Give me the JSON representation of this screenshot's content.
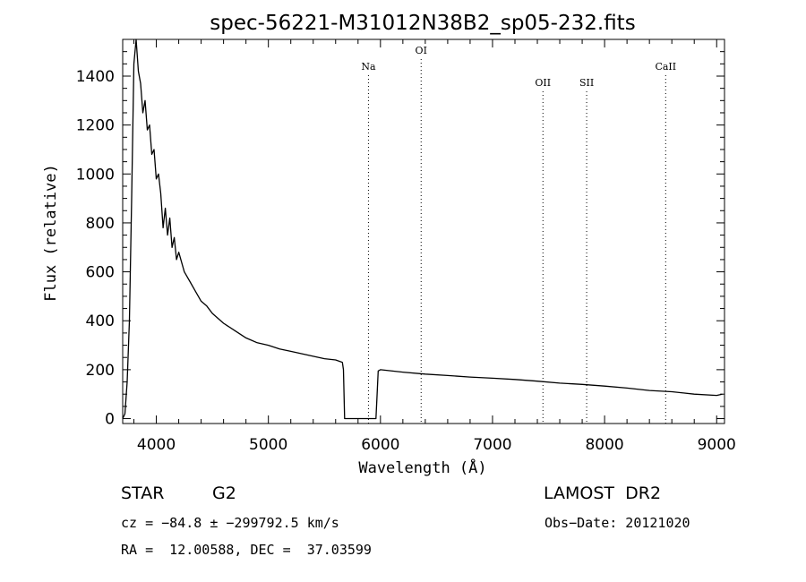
{
  "chart_data": {
    "type": "line",
    "title": "spec-56221-M31012N38B2_sp05-232.fits",
    "xlabel": "Wavelength (Å)",
    "ylabel": "Flux (relative)",
    "xlim": [
      3700,
      9070
    ],
    "ylim": [
      -20,
      1550
    ],
    "xticks": [
      4000,
      5000,
      6000,
      7000,
      8000,
      9000
    ],
    "yticks": [
      0,
      200,
      400,
      600,
      800,
      1000,
      1200,
      1400
    ],
    "xtick_labels": [
      "4000",
      "5000",
      "6000",
      "7000",
      "8000",
      "9000"
    ],
    "ytick_labels": [
      "0",
      "200",
      "400",
      "600",
      "800",
      "1000",
      "1200",
      "1400"
    ],
    "grid": false,
    "lines": [
      {
        "label": "Na",
        "wavelength": 5893
      },
      {
        "label": "OI",
        "wavelength": 6363
      },
      {
        "label": "OII",
        "wavelength": 7450
      },
      {
        "label": "SII",
        "wavelength": 7840
      },
      {
        "label": "CaII",
        "wavelength": 8545
      }
    ],
    "series": [
      {
        "x": [
          3700,
          3720,
          3740,
          3760,
          3780,
          3800,
          3820,
          3840,
          3860,
          3880,
          3900,
          3920,
          3940,
          3960,
          3980,
          4000,
          4020,
          4040,
          4060,
          4080,
          4100,
          4120,
          4140,
          4160,
          4180,
          4200,
          4250,
          4300,
          4350,
          4400,
          4450,
          4500,
          4600,
          4700,
          4800,
          4900,
          5000,
          5100,
          5200,
          5300,
          5400,
          5500,
          5600,
          5660,
          5670,
          5680,
          5690,
          5960,
          5970,
          5980,
          6000,
          6200,
          6400,
          6600,
          6800,
          7000,
          7200,
          7400,
          7600,
          7800,
          8000,
          8200,
          8400,
          8600,
          8800,
          9000,
          9050
        ],
        "y": [
          0,
          20,
          150,
          400,
          900,
          1450,
          1550,
          1420,
          1370,
          1250,
          1300,
          1180,
          1200,
          1080,
          1100,
          980,
          1000,
          920,
          780,
          860,
          750,
          820,
          700,
          740,
          650,
          680,
          600,
          560,
          520,
          480,
          460,
          430,
          390,
          360,
          330,
          310,
          300,
          285,
          275,
          265,
          255,
          245,
          240,
          230,
          200,
          0,
          0,
          0,
          100,
          195,
          200,
          190,
          182,
          176,
          170,
          165,
          160,
          153,
          145,
          140,
          133,
          125,
          115,
          110,
          100,
          95,
          100
        ]
      }
    ]
  },
  "info": {
    "object_class": "STAR",
    "subclass": "G2",
    "survey": "LAMOST  DR2",
    "cz": "cz = −84.8 ± −299792.5 km/s",
    "obs_date": "Obs−Date: 20121020",
    "coords": "RA =  12.00588, DEC =  37.03599"
  }
}
